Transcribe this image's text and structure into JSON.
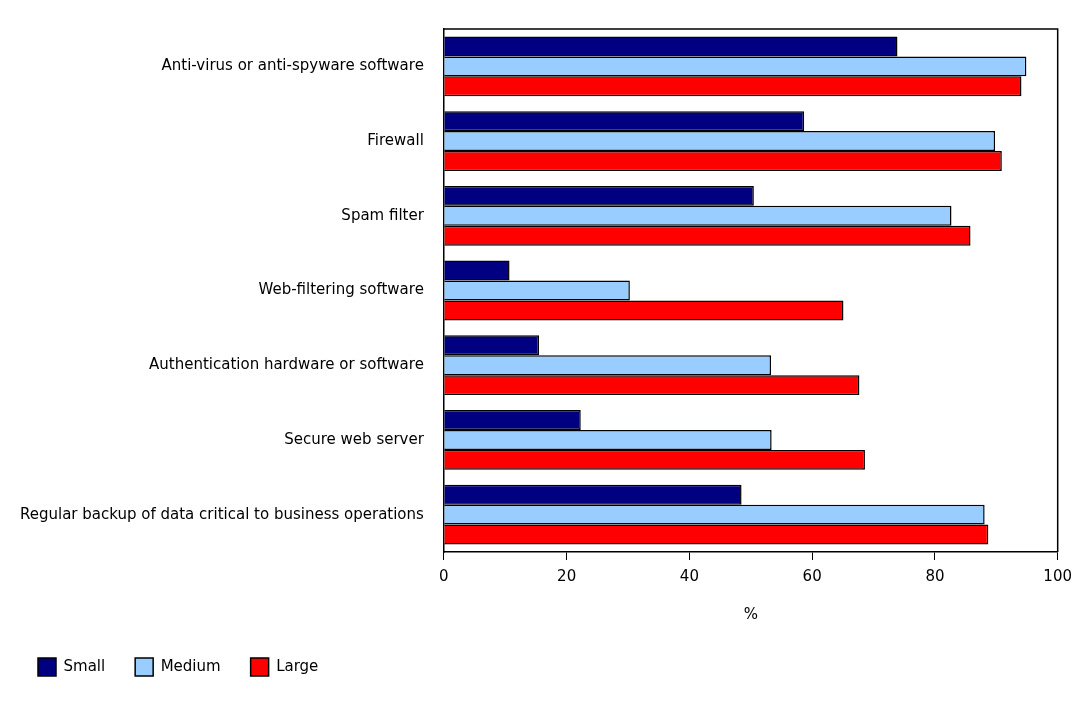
{
  "chart_data": {
    "type": "bar",
    "orientation": "horizontal",
    "xlabel": "%",
    "categories": [
      "Anti-virus or anti-spyware software",
      "Firewall",
      "Spam filter",
      "Web-filtering software",
      "Authentication hardware or software",
      "Secure web server",
      "Regular backup of data critical to business operations"
    ],
    "series": [
      {
        "name": "Small",
        "color": "#000080",
        "values": [
          73.9,
          58.7,
          50.5,
          10.7,
          15.5,
          22.3,
          48.5
        ]
      },
      {
        "name": "Medium",
        "color": "#99ccff",
        "values": [
          94.9,
          89.8,
          82.7,
          30.3,
          53.3,
          53.4,
          88.1
        ]
      },
      {
        "name": "Large",
        "color": "#ff0000",
        "values": [
          94.1,
          90.9,
          85.8,
          65.1,
          67.7,
          68.6,
          88.7
        ]
      }
    ],
    "xlim": [
      0,
      100
    ],
    "xticks": [
      0,
      20,
      40,
      60,
      80,
      100
    ],
    "legend": "bottom"
  }
}
